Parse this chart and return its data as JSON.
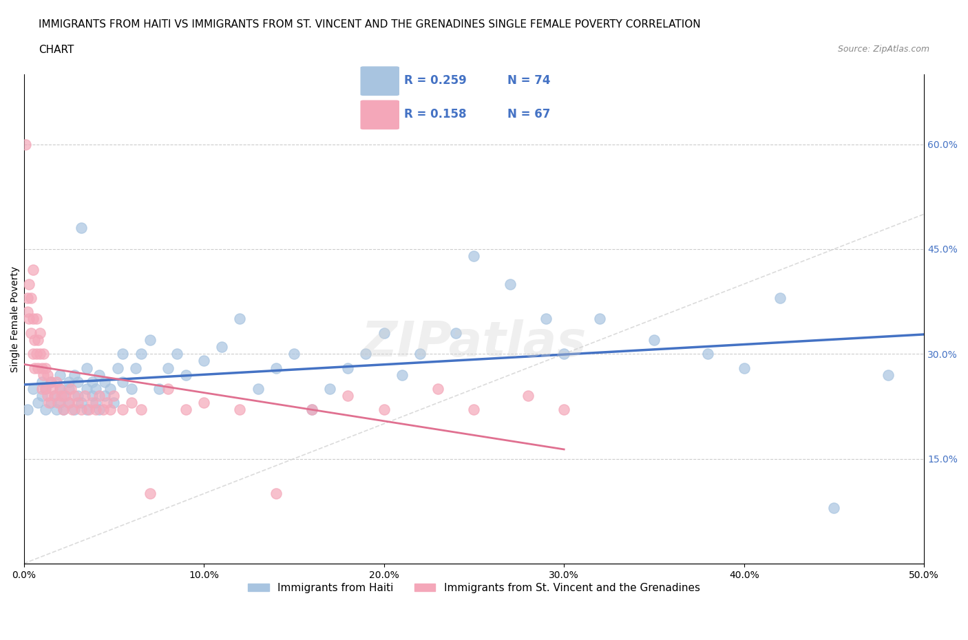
{
  "title_line1": "IMMIGRANTS FROM HAITI VS IMMIGRANTS FROM ST. VINCENT AND THE GRENADINES SINGLE FEMALE POVERTY CORRELATION",
  "title_line2": "CHART",
  "source": "Source: ZipAtlas.com",
  "xlabel": "",
  "ylabel": "Single Female Poverty",
  "xlim": [
    0.0,
    0.5
  ],
  "ylim": [
    0.0,
    0.7
  ],
  "xtick_labels": [
    "0.0%",
    "10.0%",
    "20.0%",
    "30.0%",
    "40.0%",
    "50.0%"
  ],
  "xtick_values": [
    0.0,
    0.1,
    0.2,
    0.3,
    0.4,
    0.5
  ],
  "ytick_labels": [
    "15.0%",
    "30.0%",
    "45.0%",
    "60.0%"
  ],
  "ytick_values": [
    0.15,
    0.3,
    0.45,
    0.6
  ],
  "haiti_color": "#a8c4e0",
  "stvincent_color": "#f4a7b9",
  "haiti_edge": "#6baed6",
  "stvincent_edge": "#e07090",
  "haiti_line_color": "#4472c4",
  "stvincent_line_color": "#e07090",
  "haiti_R": 0.259,
  "haiti_N": 74,
  "stvincent_R": 0.158,
  "stvincent_N": 67,
  "legend_label_haiti": "Immigrants from Haiti",
  "legend_label_stvincent": "Immigrants from St. Vincent and the Grenadines",
  "watermark": "ZIPatlas",
  "haiti_x": [
    0.002,
    0.005,
    0.008,
    0.01,
    0.01,
    0.012,
    0.012,
    0.015,
    0.015,
    0.017,
    0.018,
    0.02,
    0.02,
    0.02,
    0.022,
    0.022,
    0.025,
    0.025,
    0.025,
    0.028,
    0.028,
    0.03,
    0.03,
    0.032,
    0.032,
    0.035,
    0.035,
    0.035,
    0.038,
    0.038,
    0.04,
    0.04,
    0.042,
    0.042,
    0.045,
    0.045,
    0.048,
    0.05,
    0.052,
    0.055,
    0.055,
    0.06,
    0.062,
    0.065,
    0.07,
    0.075,
    0.08,
    0.085,
    0.09,
    0.1,
    0.11,
    0.12,
    0.13,
    0.14,
    0.15,
    0.16,
    0.17,
    0.18,
    0.19,
    0.2,
    0.21,
    0.22,
    0.24,
    0.25,
    0.27,
    0.29,
    0.3,
    0.32,
    0.35,
    0.38,
    0.4,
    0.42,
    0.45,
    0.48
  ],
  "haiti_y": [
    0.22,
    0.25,
    0.23,
    0.24,
    0.26,
    0.22,
    0.25,
    0.23,
    0.26,
    0.24,
    0.22,
    0.25,
    0.27,
    0.23,
    0.22,
    0.24,
    0.26,
    0.23,
    0.25,
    0.27,
    0.22,
    0.24,
    0.26,
    0.23,
    0.48,
    0.25,
    0.22,
    0.28,
    0.24,
    0.26,
    0.23,
    0.25,
    0.27,
    0.22,
    0.24,
    0.26,
    0.25,
    0.23,
    0.28,
    0.3,
    0.26,
    0.25,
    0.28,
    0.3,
    0.32,
    0.25,
    0.28,
    0.3,
    0.27,
    0.29,
    0.31,
    0.35,
    0.25,
    0.28,
    0.3,
    0.22,
    0.25,
    0.28,
    0.3,
    0.33,
    0.27,
    0.3,
    0.33,
    0.44,
    0.4,
    0.35,
    0.3,
    0.35,
    0.32,
    0.3,
    0.28,
    0.38,
    0.08,
    0.27
  ],
  "stvincent_x": [
    0.001,
    0.002,
    0.002,
    0.003,
    0.003,
    0.004,
    0.004,
    0.005,
    0.005,
    0.005,
    0.006,
    0.006,
    0.007,
    0.007,
    0.008,
    0.008,
    0.009,
    0.009,
    0.01,
    0.01,
    0.011,
    0.011,
    0.012,
    0.012,
    0.013,
    0.013,
    0.014,
    0.015,
    0.016,
    0.017,
    0.018,
    0.019,
    0.02,
    0.021,
    0.022,
    0.023,
    0.025,
    0.026,
    0.027,
    0.028,
    0.03,
    0.032,
    0.034,
    0.036,
    0.038,
    0.04,
    0.042,
    0.044,
    0.046,
    0.048,
    0.05,
    0.055,
    0.06,
    0.065,
    0.07,
    0.08,
    0.09,
    0.1,
    0.12,
    0.14,
    0.16,
    0.18,
    0.2,
    0.23,
    0.25,
    0.28,
    0.3
  ],
  "stvincent_y": [
    0.6,
    0.36,
    0.38,
    0.35,
    0.4,
    0.33,
    0.38,
    0.3,
    0.35,
    0.42,
    0.28,
    0.32,
    0.3,
    0.35,
    0.28,
    0.32,
    0.3,
    0.33,
    0.25,
    0.28,
    0.27,
    0.3,
    0.25,
    0.28,
    0.24,
    0.27,
    0.23,
    0.26,
    0.25,
    0.24,
    0.26,
    0.23,
    0.25,
    0.24,
    0.22,
    0.24,
    0.23,
    0.25,
    0.22,
    0.24,
    0.23,
    0.22,
    0.24,
    0.22,
    0.23,
    0.22,
    0.24,
    0.22,
    0.23,
    0.22,
    0.24,
    0.22,
    0.23,
    0.22,
    0.1,
    0.25,
    0.22,
    0.23,
    0.22,
    0.1,
    0.22,
    0.24,
    0.22,
    0.25,
    0.22,
    0.24,
    0.22
  ],
  "title_fontsize": 11,
  "label_fontsize": 10,
  "tick_fontsize": 10
}
